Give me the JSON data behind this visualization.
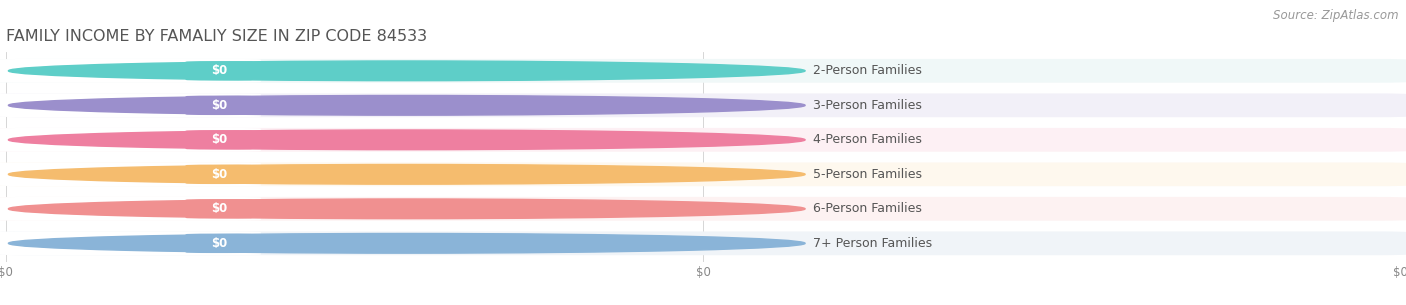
{
  "title": "FAMILY INCOME BY FAMALIY SIZE IN ZIP CODE 84533",
  "source_text": "Source: ZipAtlas.com",
  "categories": [
    "2-Person Families",
    "3-Person Families",
    "4-Person Families",
    "5-Person Families",
    "6-Person Families",
    "7+ Person Families"
  ],
  "values": [
    0,
    0,
    0,
    0,
    0,
    0
  ],
  "bar_colors": [
    "#5ecec8",
    "#9b8fcc",
    "#ee7fa0",
    "#f5bc6e",
    "#f09090",
    "#8ab4d8"
  ],
  "bar_bg_colors": [
    "#f0f8f8",
    "#f2f0f8",
    "#fdf0f4",
    "#fef8ee",
    "#fdf2f2",
    "#f0f4f8"
  ],
  "value_labels": [
    "$0",
    "$0",
    "$0",
    "$0",
    "$0",
    "$0"
  ],
  "xtick_labels": [
    "$0",
    "$0",
    "$0"
  ],
  "xtick_positions": [
    0.0,
    0.5,
    1.0
  ],
  "background_color": "#ffffff",
  "plot_bg_color": "#f5f5f7",
  "title_fontsize": 11.5,
  "label_fontsize": 9,
  "source_fontsize": 8.5
}
